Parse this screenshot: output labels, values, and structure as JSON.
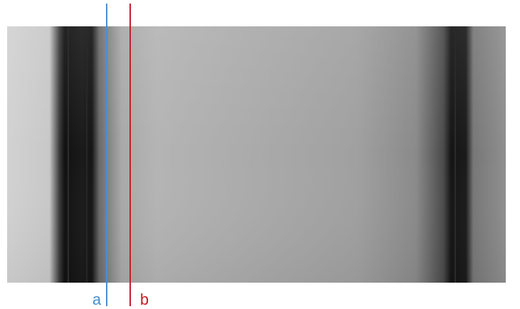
{
  "annotations": [
    "a",
    "b"
  ]
}
